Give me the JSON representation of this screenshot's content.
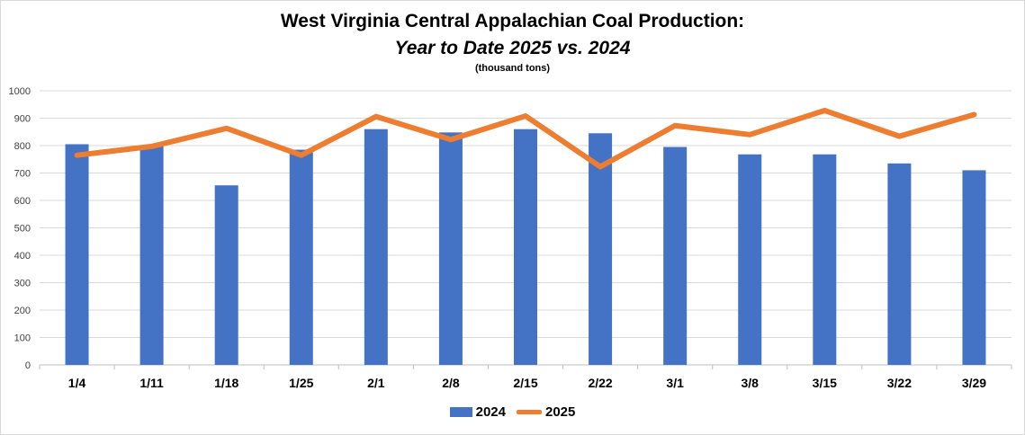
{
  "chart_data": {
    "type": "bar",
    "title": "West Virginia Central Appalachian Coal Production:",
    "subtitle": "Year to Date 2025 vs. 2024",
    "units": "(thousand tons)",
    "categories": [
      "1/4",
      "1/11",
      "1/18",
      "1/25",
      "2/1",
      "2/8",
      "2/15",
      "2/22",
      "3/1",
      "3/8",
      "3/15",
      "3/22",
      "3/29"
    ],
    "series": [
      {
        "name": "2024",
        "type": "bar",
        "color": "#4472c4",
        "values": [
          805,
          800,
          655,
          785,
          860,
          848,
          860,
          845,
          795,
          768,
          768,
          735,
          710
        ]
      },
      {
        "name": "2025",
        "type": "line",
        "color": "#ed7d31",
        "values": [
          765,
          797,
          863,
          765,
          906,
          822,
          908,
          723,
          873,
          840,
          928,
          834,
          913
        ]
      }
    ],
    "ylim": [
      0,
      1000
    ],
    "yticks": [
      "0",
      "100",
      "200",
      "300",
      "400",
      "500",
      "600",
      "700",
      "800",
      "900",
      "1000"
    ],
    "grid": true,
    "legend": "bottom"
  }
}
